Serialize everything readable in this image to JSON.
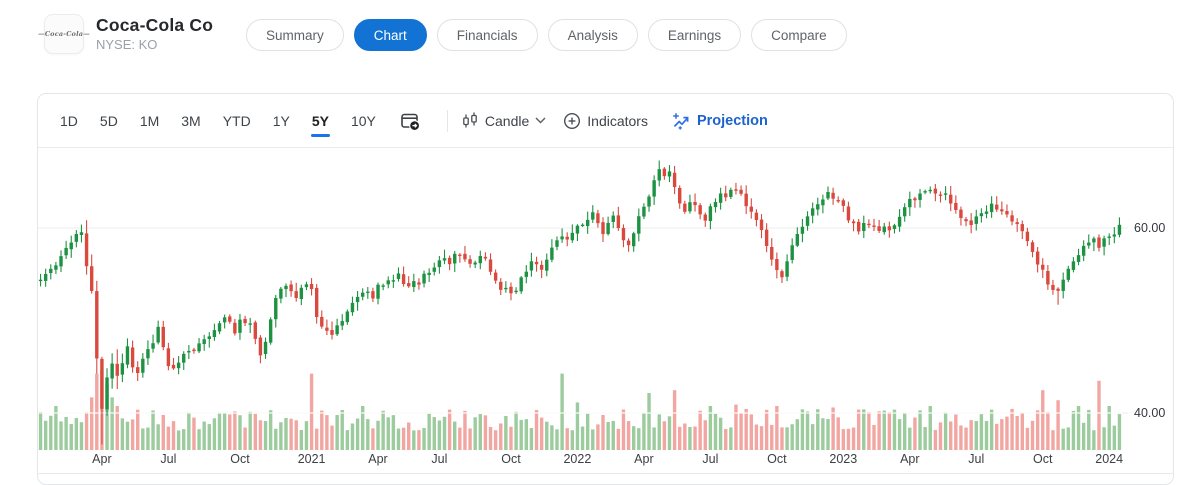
{
  "header": {
    "logo_text": "Coca-Cola",
    "company_name": "Coca-Cola Co",
    "exchange_symbol": "NYSE: KO",
    "tabs": [
      {
        "label": "Summary",
        "active": false
      },
      {
        "label": "Chart",
        "active": true
      },
      {
        "label": "Financials",
        "active": false
      },
      {
        "label": "Analysis",
        "active": false
      },
      {
        "label": "Earnings",
        "active": false
      },
      {
        "label": "Compare",
        "active": false
      }
    ]
  },
  "toolbar": {
    "ranges": [
      {
        "label": "1D",
        "active": false
      },
      {
        "label": "5D",
        "active": false
      },
      {
        "label": "1M",
        "active": false
      },
      {
        "label": "3M",
        "active": false
      },
      {
        "label": "YTD",
        "active": false
      },
      {
        "label": "1Y",
        "active": false
      },
      {
        "label": "5Y",
        "active": true
      },
      {
        "label": "10Y",
        "active": false
      }
    ],
    "chart_type_label": "Candle",
    "indicators_label": "Indicators",
    "projection_label": "Projection"
  },
  "colors": {
    "accent_blue": "#1273d4",
    "projection_blue": "#2f6fe4",
    "candle_up": "#1d9243",
    "candle_down": "#d9493e",
    "volume_up": "#9ccb9e",
    "volume_down": "#f2a6a2",
    "grid": "#ececec",
    "axis_text": "#3c4043"
  },
  "chart_data": {
    "type": "candlestick+volume",
    "symbol": "NYSE: KO",
    "selected_range": "5Y",
    "interval": "weekly",
    "weeks": 212,
    "grid": "horizontal-only",
    "y_axis": {
      "side": "right",
      "ticks": [
        {
          "label": "60.00",
          "value": 60
        },
        {
          "label": "40.00",
          "value": 40
        }
      ],
      "price_range_visible": [
        36.0,
        68.5
      ]
    },
    "x_ticks": [
      {
        "label": "Apr",
        "week": 12
      },
      {
        "label": "Jul",
        "week": 25
      },
      {
        "label": "Oct",
        "week": 39
      },
      {
        "label": "2021",
        "week": 53
      },
      {
        "label": "Apr",
        "week": 66
      },
      {
        "label": "Jul",
        "week": 78
      },
      {
        "label": "Oct",
        "week": 92
      },
      {
        "label": "2022",
        "week": 105
      },
      {
        "label": "Apr",
        "week": 118
      },
      {
        "label": "Jul",
        "week": 131
      },
      {
        "label": "Oct",
        "week": 144
      },
      {
        "label": "2023",
        "week": 157
      },
      {
        "label": "Apr",
        "week": 170
      },
      {
        "label": "Jul",
        "week": 183
      },
      {
        "label": "Oct",
        "week": 196
      },
      {
        "label": "2024",
        "week": 209
      }
    ],
    "trend_anchors": [
      [
        0,
        54.4
      ],
      [
        3,
        56.2
      ],
      [
        5,
        57.6
      ],
      [
        7,
        59.6
      ],
      [
        8,
        59.3
      ],
      [
        9,
        56.5
      ],
      [
        10,
        53.5
      ],
      [
        11,
        46.5
      ],
      [
        12,
        40.5
      ],
      [
        13,
        43.5
      ],
      [
        14,
        45.8
      ],
      [
        15,
        44.2
      ],
      [
        16,
        45.5
      ],
      [
        17,
        47.2
      ],
      [
        18,
        45.2
      ],
      [
        19,
        44.6
      ],
      [
        20,
        45.8
      ],
      [
        21,
        46.8
      ],
      [
        22,
        47.8
      ],
      [
        23,
        49.4
      ],
      [
        24,
        47.0
      ],
      [
        25,
        45.2
      ],
      [
        26,
        44.6
      ],
      [
        27,
        45.2
      ],
      [
        28,
        46.4
      ],
      [
        29,
        47.0
      ],
      [
        30,
        46.4
      ],
      [
        31,
        47.6
      ],
      [
        33,
        48.4
      ],
      [
        35,
        49.6
      ],
      [
        36,
        50.6
      ],
      [
        38,
        48.8
      ],
      [
        39,
        50.0
      ],
      [
        41,
        49.6
      ],
      [
        42,
        48.0
      ],
      [
        43,
        46.4
      ],
      [
        44,
        47.4
      ],
      [
        45,
        50.4
      ],
      [
        46,
        52.4
      ],
      [
        47,
        53.2
      ],
      [
        48,
        54.0
      ],
      [
        49,
        53.2
      ],
      [
        50,
        52.6
      ],
      [
        51,
        53.6
      ],
      [
        52,
        54.2
      ],
      [
        53,
        53.2
      ],
      [
        54,
        50.2
      ],
      [
        55,
        49.6
      ],
      [
        56,
        48.6
      ],
      [
        57,
        48.4
      ],
      [
        58,
        49.6
      ],
      [
        59,
        50.2
      ],
      [
        60,
        50.8
      ],
      [
        61,
        51.6
      ],
      [
        62,
        52.4
      ],
      [
        63,
        52.8
      ],
      [
        64,
        53.4
      ],
      [
        65,
        52.6
      ],
      [
        66,
        53.6
      ],
      [
        68,
        54.4
      ],
      [
        70,
        55.0
      ],
      [
        71,
        54.2
      ],
      [
        72,
        54.0
      ],
      [
        73,
        54.6
      ],
      [
        74,
        54.2
      ],
      [
        75,
        54.8
      ],
      [
        76,
        55.4
      ],
      [
        77,
        55.8
      ],
      [
        78,
        56.4
      ],
      [
        79,
        56.8
      ],
      [
        80,
        56.4
      ],
      [
        81,
        57.0
      ],
      [
        82,
        57.2
      ],
      [
        83,
        56.6
      ],
      [
        84,
        56.2
      ],
      [
        85,
        56.6
      ],
      [
        86,
        57.0
      ],
      [
        87,
        56.4
      ],
      [
        88,
        55.4
      ],
      [
        89,
        54.2
      ],
      [
        90,
        53.6
      ],
      [
        91,
        53.2
      ],
      [
        92,
        53.0
      ],
      [
        93,
        53.4
      ],
      [
        94,
        54.4
      ],
      [
        95,
        55.6
      ],
      [
        96,
        56.6
      ],
      [
        97,
        56.2
      ],
      [
        98,
        55.8
      ],
      [
        99,
        56.6
      ],
      [
        100,
        57.6
      ],
      [
        101,
        58.6
      ],
      [
        102,
        59.2
      ],
      [
        103,
        58.8
      ],
      [
        104,
        59.6
      ],
      [
        105,
        60.2
      ],
      [
        106,
        60.6
      ],
      [
        107,
        61.2
      ],
      [
        108,
        61.6
      ],
      [
        109,
        60.6
      ],
      [
        110,
        59.6
      ],
      [
        111,
        60.8
      ],
      [
        112,
        61.2
      ],
      [
        113,
        60.2
      ],
      [
        114,
        58.8
      ],
      [
        115,
        58.2
      ],
      [
        116,
        59.6
      ],
      [
        117,
        61.2
      ],
      [
        118,
        62.4
      ],
      [
        119,
        63.6
      ],
      [
        120,
        65.0
      ],
      [
        121,
        66.2
      ],
      [
        122,
        65.6
      ],
      [
        123,
        66.0
      ],
      [
        124,
        64.2
      ],
      [
        125,
        62.6
      ],
      [
        126,
        61.8
      ],
      [
        127,
        62.6
      ],
      [
        128,
        62.8
      ],
      [
        129,
        61.6
      ],
      [
        130,
        60.8
      ],
      [
        131,
        62.0
      ],
      [
        132,
        63.0
      ],
      [
        133,
        63.4
      ],
      [
        134,
        63.0
      ],
      [
        135,
        63.8
      ],
      [
        136,
        64.2
      ],
      [
        137,
        63.6
      ],
      [
        138,
        62.6
      ],
      [
        139,
        61.8
      ],
      [
        140,
        60.6
      ],
      [
        141,
        59.8
      ],
      [
        142,
        58.4
      ],
      [
        143,
        56.8
      ],
      [
        144,
        55.6
      ],
      [
        145,
        54.8
      ],
      [
        146,
        56.2
      ],
      [
        147,
        58.0
      ],
      [
        148,
        59.6
      ],
      [
        149,
        60.4
      ],
      [
        150,
        61.4
      ],
      [
        151,
        62.4
      ],
      [
        152,
        62.8
      ],
      [
        153,
        63.2
      ],
      [
        154,
        63.8
      ],
      [
        155,
        63.4
      ],
      [
        156,
        63.2
      ],
      [
        157,
        62.2
      ],
      [
        158,
        61.0
      ],
      [
        159,
        60.2
      ],
      [
        160,
        59.9
      ],
      [
        161,
        60.4
      ],
      [
        162,
        60.2
      ],
      [
        163,
        60.4
      ],
      [
        164,
        60.0
      ],
      [
        165,
        60.2
      ],
      [
        166,
        60.0
      ],
      [
        167,
        60.6
      ],
      [
        168,
        61.4
      ],
      [
        169,
        62.2
      ],
      [
        170,
        62.8
      ],
      [
        171,
        63.2
      ],
      [
        172,
        63.6
      ],
      [
        173,
        64.0
      ],
      [
        174,
        64.2
      ],
      [
        175,
        63.6
      ],
      [
        176,
        63.2
      ],
      [
        177,
        63.4
      ],
      [
        178,
        62.4
      ],
      [
        179,
        61.8
      ],
      [
        180,
        61.2
      ],
      [
        181,
        60.4
      ],
      [
        182,
        60.2
      ],
      [
        183,
        61.0
      ],
      [
        184,
        61.6
      ],
      [
        185,
        62.0
      ],
      [
        186,
        62.4
      ],
      [
        187,
        62.2
      ],
      [
        188,
        61.6
      ],
      [
        189,
        61.2
      ],
      [
        190,
        60.8
      ],
      [
        191,
        60.4
      ],
      [
        192,
        59.8
      ],
      [
        193,
        58.6
      ],
      [
        194,
        57.4
      ],
      [
        195,
        56.2
      ],
      [
        196,
        55.2
      ],
      [
        197,
        54.0
      ],
      [
        198,
        53.4
      ],
      [
        199,
        53.0
      ],
      [
        200,
        54.2
      ],
      [
        201,
        55.6
      ],
      [
        202,
        56.6
      ],
      [
        203,
        57.4
      ],
      [
        204,
        57.8
      ],
      [
        205,
        58.4
      ],
      [
        206,
        58.6
      ],
      [
        207,
        58.2
      ],
      [
        208,
        58.8
      ],
      [
        209,
        59.0
      ],
      [
        210,
        59.4
      ],
      [
        211,
        60.2
      ]
    ],
    "wick_extremes": {
      "lows": [
        [
          12,
          36.6
        ],
        [
          199,
          51.7
        ]
      ],
      "highs": [
        [
          121,
          67.3
        ]
      ]
    },
    "high_volatility_weeks": [
      9,
      16
    ],
    "volume_spikes": [
      [
        3,
        0.5
      ],
      [
        10,
        0.62
      ],
      [
        11,
        0.95
      ],
      [
        12,
        1.0
      ],
      [
        13,
        0.8
      ],
      [
        14,
        0.62
      ],
      [
        15,
        0.5
      ],
      [
        53,
        0.95
      ],
      [
        63,
        0.5
      ],
      [
        80,
        0.45
      ],
      [
        102,
        0.95
      ],
      [
        105,
        0.55
      ],
      [
        119,
        0.68
      ],
      [
        124,
        0.72
      ],
      [
        131,
        0.5
      ],
      [
        136,
        0.52
      ],
      [
        144,
        0.5
      ],
      [
        155,
        0.48
      ],
      [
        160,
        0.45
      ],
      [
        174,
        0.5
      ],
      [
        186,
        0.45
      ],
      [
        196,
        0.72
      ],
      [
        199,
        0.58
      ],
      [
        203,
        0.5
      ],
      [
        207,
        0.85
      ],
      [
        209,
        0.5
      ]
    ],
    "seed": 11
  }
}
